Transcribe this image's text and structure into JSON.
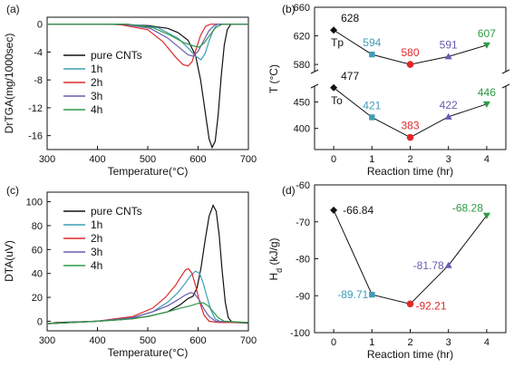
{
  "colors": {
    "black": "#111111",
    "teal": "#3f9db6",
    "red": "#e0282b",
    "purple": "#6a5bb0",
    "green": "#2e9a46"
  },
  "chart_data": [
    {
      "panel": "(a)",
      "type": "line",
      "xlabel": "Temperature(°C)",
      "ylabel": "DrTGA(mg/1000sec)",
      "xlim": [
        300,
        700
      ],
      "ylim": [
        -18,
        1
      ],
      "xticks": [
        "300",
        "400",
        "500",
        "600",
        "700"
      ],
      "yticks": [
        "0",
        "-4",
        "-8",
        "-12",
        "-16"
      ],
      "legend_position": "inside-left",
      "series": [
        {
          "name": "pure CNTs",
          "color": "#111111",
          "points": [
            [
              300,
              0
            ],
            [
              420,
              0
            ],
            [
              500,
              -0.2
            ],
            [
              540,
              -0.6
            ],
            [
              560,
              -1.2
            ],
            [
              580,
              -2.3
            ],
            [
              595,
              -4.5
            ],
            [
              605,
              -8
            ],
            [
              615,
              -13
            ],
            [
              622,
              -16.5
            ],
            [
              628,
              -17.7
            ],
            [
              634,
              -16.8
            ],
            [
              640,
              -13
            ],
            [
              646,
              -7.5
            ],
            [
              652,
              -3
            ],
            [
              658,
              -0.8
            ],
            [
              665,
              0
            ],
            [
              700,
              0
            ]
          ]
        },
        {
          "name": "1h",
          "color": "#3f9db6",
          "points": [
            [
              300,
              0
            ],
            [
              460,
              0
            ],
            [
              520,
              -0.5
            ],
            [
              560,
              -2
            ],
            [
              580,
              -3.4
            ],
            [
              595,
              -4.6
            ],
            [
              606,
              -5.1
            ],
            [
              614,
              -4.2
            ],
            [
              622,
              -2.4
            ],
            [
              630,
              -0.9
            ],
            [
              638,
              0
            ],
            [
              700,
              0
            ]
          ]
        },
        {
          "name": "2h",
          "color": "#e0282b",
          "points": [
            [
              300,
              0
            ],
            [
              440,
              0
            ],
            [
              500,
              -0.8
            ],
            [
              530,
              -2.5
            ],
            [
              555,
              -4.7
            ],
            [
              570,
              -5.8
            ],
            [
              580,
              -6.0
            ],
            [
              588,
              -5.4
            ],
            [
              596,
              -3.6
            ],
            [
              605,
              -1.6
            ],
            [
              615,
              -0.3
            ],
            [
              625,
              0
            ],
            [
              700,
              0
            ]
          ]
        },
        {
          "name": "3h",
          "color": "#6a5bb0",
          "points": [
            [
              300,
              0
            ],
            [
              450,
              0
            ],
            [
              505,
              -0.6
            ],
            [
              540,
              -2
            ],
            [
              565,
              -3.5
            ],
            [
              580,
              -4.4
            ],
            [
              590,
              -4.6
            ],
            [
              600,
              -3.9
            ],
            [
              610,
              -2.5
            ],
            [
              622,
              -0.9
            ],
            [
              635,
              0
            ],
            [
              700,
              0
            ]
          ]
        },
        {
          "name": "4h",
          "color": "#2e9a46",
          "points": [
            [
              300,
              0
            ],
            [
              460,
              0
            ],
            [
              510,
              -0.5
            ],
            [
              545,
              -1.6
            ],
            [
              570,
              -2.6
            ],
            [
              590,
              -3.1
            ],
            [
              602,
              -3.3
            ],
            [
              612,
              -2.7
            ],
            [
              622,
              -1.7
            ],
            [
              635,
              -0.5
            ],
            [
              648,
              0
            ],
            [
              700,
              0
            ]
          ]
        }
      ]
    },
    {
      "panel": "(b)",
      "type": "line",
      "xlabel": "Reaction time (hr)",
      "ylabel": "T (°C)",
      "xlim": [
        -0.5,
        4.5
      ],
      "xticks": [
        "0",
        "1",
        "2",
        "3",
        "4"
      ],
      "upper_axis": {
        "ylim": [
          570,
          660
        ],
        "yticks": [
          "580",
          "620",
          "660"
        ]
      },
      "lower_axis": {
        "ylim": [
          360,
          480
        ],
        "yticks": [
          "400",
          "450"
        ]
      },
      "series": [
        {
          "name": "Tp",
          "axis": "upper",
          "x": [
            0,
            1,
            2,
            3,
            4
          ],
          "y": [
            628,
            594,
            580,
            591,
            607
          ],
          "labels": [
            "628",
            "594",
            "580",
            "591",
            "607"
          ],
          "marker_colors": [
            "#111111",
            "#3f9db6",
            "#e0282b",
            "#6a5bb0",
            "#2e9a46"
          ],
          "markers": [
            "diamond",
            "square",
            "circle",
            "triangle-up",
            "triangle-down"
          ]
        },
        {
          "name": "To",
          "axis": "lower",
          "x": [
            0,
            1,
            2,
            3,
            4
          ],
          "y": [
            477,
            421,
            383,
            422,
            446
          ],
          "labels": [
            "477",
            "421",
            "383",
            "422",
            "446"
          ],
          "marker_colors": [
            "#111111",
            "#3f9db6",
            "#e0282b",
            "#6a5bb0",
            "#2e9a46"
          ],
          "markers": [
            "diamond",
            "square",
            "circle",
            "triangle-up",
            "triangle-down"
          ]
        }
      ]
    },
    {
      "panel": "(c)",
      "type": "line",
      "xlabel": "Temperature(°C)",
      "ylabel": "DTA(uV)",
      "xlim": [
        300,
        700
      ],
      "ylim": [
        -8,
        108
      ],
      "xticks": [
        "300",
        "400",
        "500",
        "600",
        "700"
      ],
      "yticks": [
        "0",
        "20",
        "40",
        "60",
        "80",
        "100"
      ],
      "legend_position": "inside-left",
      "series": [
        {
          "name": "pure CNTs",
          "color": "#111111",
          "points": [
            [
              300,
              -2
            ],
            [
              320,
              -1
            ],
            [
              400,
              0
            ],
            [
              450,
              1.5
            ],
            [
              500,
              4
            ],
            [
              540,
              8
            ],
            [
              565,
              14
            ],
            [
              580,
              19
            ],
            [
              590,
              21
            ],
            [
              598,
              28
            ],
            [
              606,
              45
            ],
            [
              614,
              68
            ],
            [
              622,
              88
            ],
            [
              630,
              97
            ],
            [
              636,
              92
            ],
            [
              642,
              72
            ],
            [
              648,
              42
            ],
            [
              654,
              16
            ],
            [
              660,
              3
            ],
            [
              668,
              -1
            ],
            [
              700,
              -1.5
            ]
          ]
        },
        {
          "name": "1h",
          "color": "#3f9db6",
          "points": [
            [
              300,
              -2
            ],
            [
              400,
              0
            ],
            [
              470,
              3
            ],
            [
              510,
              8
            ],
            [
              540,
              16
            ],
            [
              560,
              24
            ],
            [
              575,
              32
            ],
            [
              585,
              38
            ],
            [
              595,
              42
            ],
            [
              603,
              40
            ],
            [
              610,
              32
            ],
            [
              618,
              20
            ],
            [
              626,
              9
            ],
            [
              634,
              2
            ],
            [
              645,
              -0.5
            ],
            [
              700,
              -1
            ]
          ]
        },
        {
          "name": "2h",
          "color": "#e0282b",
          "points": [
            [
              300,
              -2
            ],
            [
              400,
              0
            ],
            [
              470,
              4
            ],
            [
              510,
              11
            ],
            [
              535,
              20
            ],
            [
              555,
              30
            ],
            [
              567,
              38
            ],
            [
              575,
              43
            ],
            [
              581,
              44
            ],
            [
              588,
              40
            ],
            [
              595,
              30
            ],
            [
              603,
              16
            ],
            [
              612,
              5
            ],
            [
              622,
              0
            ],
            [
              640,
              -1
            ],
            [
              700,
              -1
            ]
          ]
        },
        {
          "name": "3h",
          "color": "#6a5bb0",
          "points": [
            [
              300,
              -2
            ],
            [
              400,
              0
            ],
            [
              470,
              3
            ],
            [
              510,
              8
            ],
            [
              540,
              13
            ],
            [
              560,
              18
            ],
            [
              575,
              22
            ],
            [
              585,
              24
            ],
            [
              593,
              23
            ],
            [
              602,
              18
            ],
            [
              612,
              10
            ],
            [
              622,
              4
            ],
            [
              635,
              0
            ],
            [
              700,
              -1
            ]
          ]
        },
        {
          "name": "4h",
          "color": "#2e9a46",
          "points": [
            [
              300,
              -2
            ],
            [
              400,
              0
            ],
            [
              470,
              2
            ],
            [
              510,
              5
            ],
            [
              540,
              8
            ],
            [
              565,
              11
            ],
            [
              585,
              13
            ],
            [
              600,
              15
            ],
            [
              610,
              15.5
            ],
            [
              620,
              13
            ],
            [
              630,
              8
            ],
            [
              640,
              3
            ],
            [
              652,
              0
            ],
            [
              700,
              -1
            ]
          ]
        }
      ]
    },
    {
      "panel": "(d)",
      "type": "line",
      "xlabel": "Reaction time (hr)",
      "ylabel": "H",
      "ylabel_sub": "d",
      "ylabel_unit": " (kJ/g)",
      "xlim": [
        -0.5,
        4.5
      ],
      "ylim": [
        -100,
        -60
      ],
      "xticks": [
        "0",
        "1",
        "2",
        "3",
        "4"
      ],
      "yticks": [
        "-60",
        "-70",
        "-80",
        "-90",
        "-100"
      ],
      "series": [
        {
          "name": "Hd",
          "x": [
            0,
            1,
            2,
            3,
            4
          ],
          "y": [
            -66.84,
            -89.71,
            -92.21,
            -81.78,
            -68.28
          ],
          "labels": [
            "-66.84",
            "-89.71",
            "-92.21",
            "-81.78",
            "-68.28"
          ],
          "marker_colors": [
            "#111111",
            "#3f9db6",
            "#e0282b",
            "#6a5bb0",
            "#2e9a46"
          ],
          "markers": [
            "diamond",
            "square",
            "circle",
            "triangle-up",
            "triangle-down"
          ]
        }
      ]
    }
  ]
}
